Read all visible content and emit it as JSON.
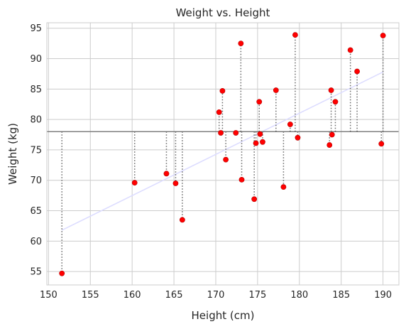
{
  "chart_data": {
    "type": "scatter",
    "title": "Weight vs. Height",
    "xlabel": "Height (cm)",
    "ylabel": "Weight (kg)",
    "xlim": [
      149.8,
      191.9
    ],
    "ylim": [
      52.8,
      95.9
    ],
    "xticks": [
      "150",
      "155",
      "160",
      "165",
      "170",
      "175",
      "180",
      "185",
      "190"
    ],
    "yticks": [
      "55",
      "60",
      "65",
      "70",
      "75",
      "80",
      "85",
      "90",
      "95"
    ],
    "grid": true,
    "mean_line_y": 78.0,
    "regression_line": {
      "x": [
        151.6,
        190.0
      ],
      "y": [
        61.8,
        87.8
      ]
    },
    "points": [
      {
        "x": 151.6,
        "y": 54.7
      },
      {
        "x": 160.3,
        "y": 69.6
      },
      {
        "x": 164.1,
        "y": 71.1
      },
      {
        "x": 165.2,
        "y": 69.5
      },
      {
        "x": 166.0,
        "y": 63.5
      },
      {
        "x": 170.4,
        "y": 81.2
      },
      {
        "x": 170.6,
        "y": 77.8
      },
      {
        "x": 170.8,
        "y": 84.7
      },
      {
        "x": 171.2,
        "y": 73.4
      },
      {
        "x": 172.4,
        "y": 77.8
      },
      {
        "x": 173.0,
        "y": 92.5
      },
      {
        "x": 173.1,
        "y": 70.1
      },
      {
        "x": 174.6,
        "y": 66.9
      },
      {
        "x": 174.8,
        "y": 76.1
      },
      {
        "x": 175.2,
        "y": 82.9
      },
      {
        "x": 175.3,
        "y": 77.6
      },
      {
        "x": 175.6,
        "y": 76.3
      },
      {
        "x": 177.2,
        "y": 84.8
      },
      {
        "x": 178.1,
        "y": 68.9
      },
      {
        "x": 178.9,
        "y": 79.2
      },
      {
        "x": 179.5,
        "y": 93.9
      },
      {
        "x": 179.8,
        "y": 77.0
      },
      {
        "x": 183.6,
        "y": 75.8
      },
      {
        "x": 183.8,
        "y": 84.8
      },
      {
        "x": 183.9,
        "y": 77.5
      },
      {
        "x": 184.3,
        "y": 82.9
      },
      {
        "x": 186.1,
        "y": 91.4
      },
      {
        "x": 186.9,
        "y": 87.9
      },
      {
        "x": 189.8,
        "y": 76.0
      },
      {
        "x": 190.0,
        "y": 93.8
      }
    ],
    "colors": {
      "point": "#ff0000",
      "grid": "#cccccc",
      "mean_line": "#808080",
      "residual": "#666666",
      "regression": "#dcdcff"
    }
  }
}
